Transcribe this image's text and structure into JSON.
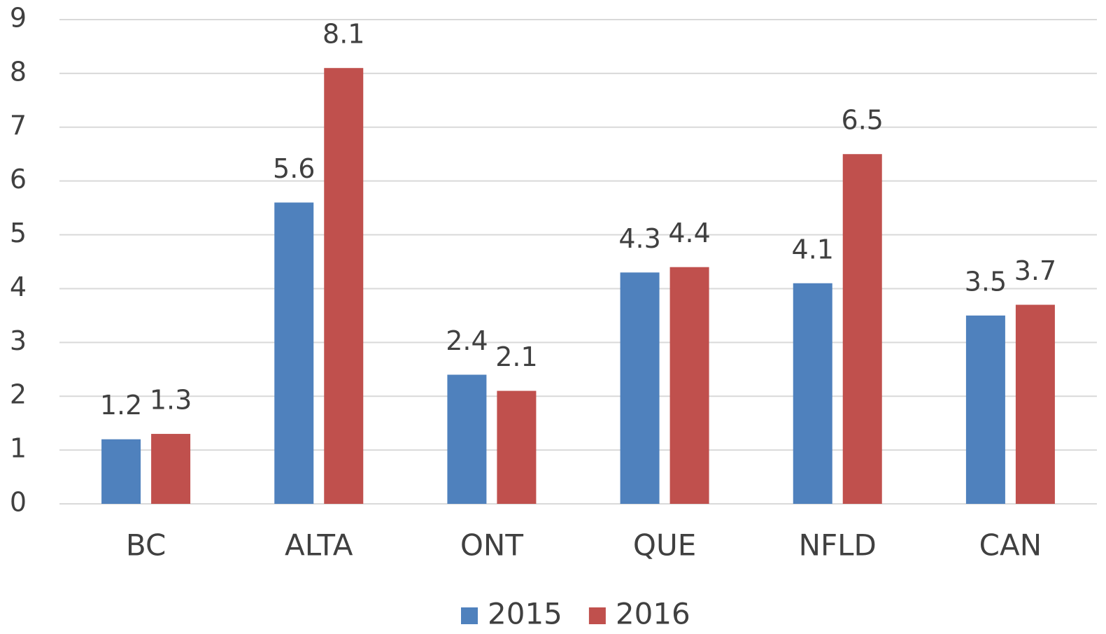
{
  "chart_data": {
    "type": "bar",
    "categories": [
      "BC",
      "ALTA",
      "ONT",
      "QUE",
      "NFLD",
      "CAN"
    ],
    "series": [
      {
        "name": "2015",
        "color": "#4f81bd",
        "values": [
          1.2,
          5.6,
          2.4,
          4.3,
          4.1,
          3.5
        ]
      },
      {
        "name": "2016",
        "color": "#c0504d",
        "values": [
          1.3,
          8.1,
          2.1,
          4.4,
          6.5,
          3.7
        ]
      }
    ],
    "ylim": [
      0,
      9
    ],
    "yticks": [
      0,
      1,
      2,
      3,
      4,
      5,
      6,
      7,
      8,
      9
    ],
    "grid": true,
    "legend": "bottom"
  }
}
